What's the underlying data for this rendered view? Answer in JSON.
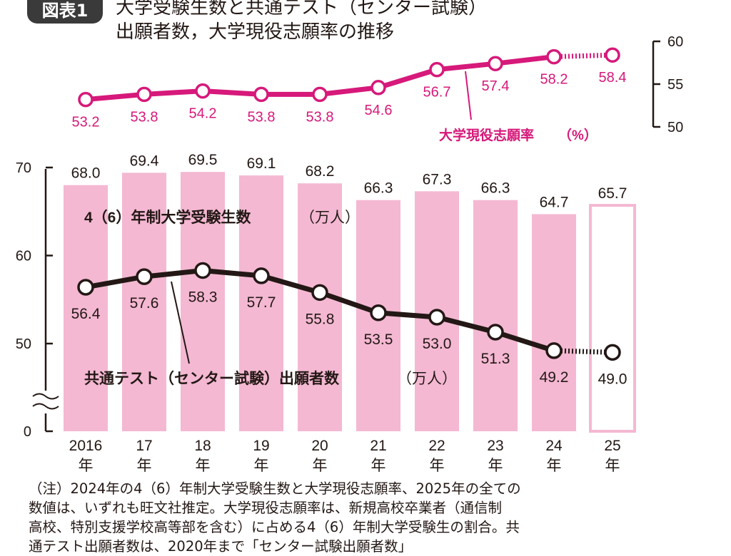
{
  "figure": {
    "badge": "図表1",
    "title_line1": "大学受験生数と共通テスト（センター試験）",
    "title_line2": "出願者数，大学現役志願率の推移"
  },
  "colors": {
    "bar_fill": "#f4b8d2",
    "bar_outline": "#f4b8d2",
    "rate_line": "#d6197a",
    "rate_text": "#d6197a",
    "applicant_line": "#231815",
    "axis": "#231815",
    "background": "#ffffff"
  },
  "chart_data": [
    {
      "type": "line",
      "title": "",
      "series": [
        {
          "name": "大学現役志願率（%）",
          "values": [
            53.2,
            53.8,
            54.2,
            53.8,
            53.8,
            54.6,
            56.7,
            57.4,
            58.2,
            58.4
          ],
          "labels": [
            "53.2",
            "53.8",
            "54.2",
            "53.8",
            "53.8",
            "54.6",
            "56.7",
            "57.4",
            "58.2",
            "58.4"
          ],
          "estimated_from_index": 9,
          "color": "#d6197a"
        }
      ],
      "y_axis": {
        "position": "right",
        "range": [
          50,
          60
        ],
        "ticks": [
          "50",
          "55",
          "60"
        ]
      },
      "x_categories_shared_with_bars": true
    },
    {
      "type": "bar",
      "categories": [
        "2016",
        "17",
        "18",
        "19",
        "20",
        "21",
        "22",
        "23",
        "24",
        "25"
      ],
      "category_suffix": "年",
      "series": [
        {
          "name": "4（6）年制大学受験生数（万人）",
          "values": [
            68.0,
            69.4,
            69.5,
            69.1,
            68.2,
            66.3,
            67.3,
            66.3,
            64.7,
            65.7
          ],
          "labels": [
            "68.0",
            "69.4",
            "69.5",
            "69.1",
            "68.2",
            "66.3",
            "67.3",
            "66.3",
            "64.7",
            "65.7"
          ],
          "estimated_from_index": 9,
          "color": "#f4b8d2"
        }
      ],
      "y_axis": {
        "position": "left",
        "range": [
          0,
          70
        ],
        "broken_between": [
          0,
          45
        ],
        "ticks": [
          "0",
          "50",
          "60",
          "70"
        ]
      },
      "series_label": {
        "main": "4（6）年制大学受験生数",
        "unit": "（万人）"
      }
    },
    {
      "type": "line",
      "categories": [
        "2016",
        "17",
        "18",
        "19",
        "20",
        "21",
        "22",
        "23",
        "24",
        "25"
      ],
      "series": [
        {
          "name": "共通テスト（センター試験）出願者数（万人）",
          "values": [
            56.4,
            57.6,
            58.3,
            57.7,
            55.8,
            53.5,
            53.0,
            51.3,
            49.2,
            49.0
          ],
          "labels": [
            "56.4",
            "57.6",
            "58.3",
            "57.7",
            "55.8",
            "53.5",
            "53.0",
            "51.3",
            "49.2",
            "49.0"
          ],
          "estimated_from_index": 9,
          "color": "#231815"
        }
      ],
      "y_axis": {
        "position": "left",
        "shared_with_bars": true
      },
      "series_label": {
        "main": "共通テスト（センター試験）出願者数",
        "unit": "（万人）"
      }
    }
  ],
  "rate_axis_label": {
    "main": "大学現役志願率",
    "unit": "（%）"
  },
  "note": {
    "line1": "（注）2024年の4（6）年制大学受験生数と大学現役志願率、2025年の全ての",
    "line2": "数値は、いずれも旺文社推定。大学現役志願率は、新規高校卒業者（通信制",
    "line3": "高校、特別支援学校高等部を含む）に占める4（6）年制大学受験生の割合。共",
    "line4": "通テスト出願者数は、2020年まで「センター試験出願者数」"
  }
}
